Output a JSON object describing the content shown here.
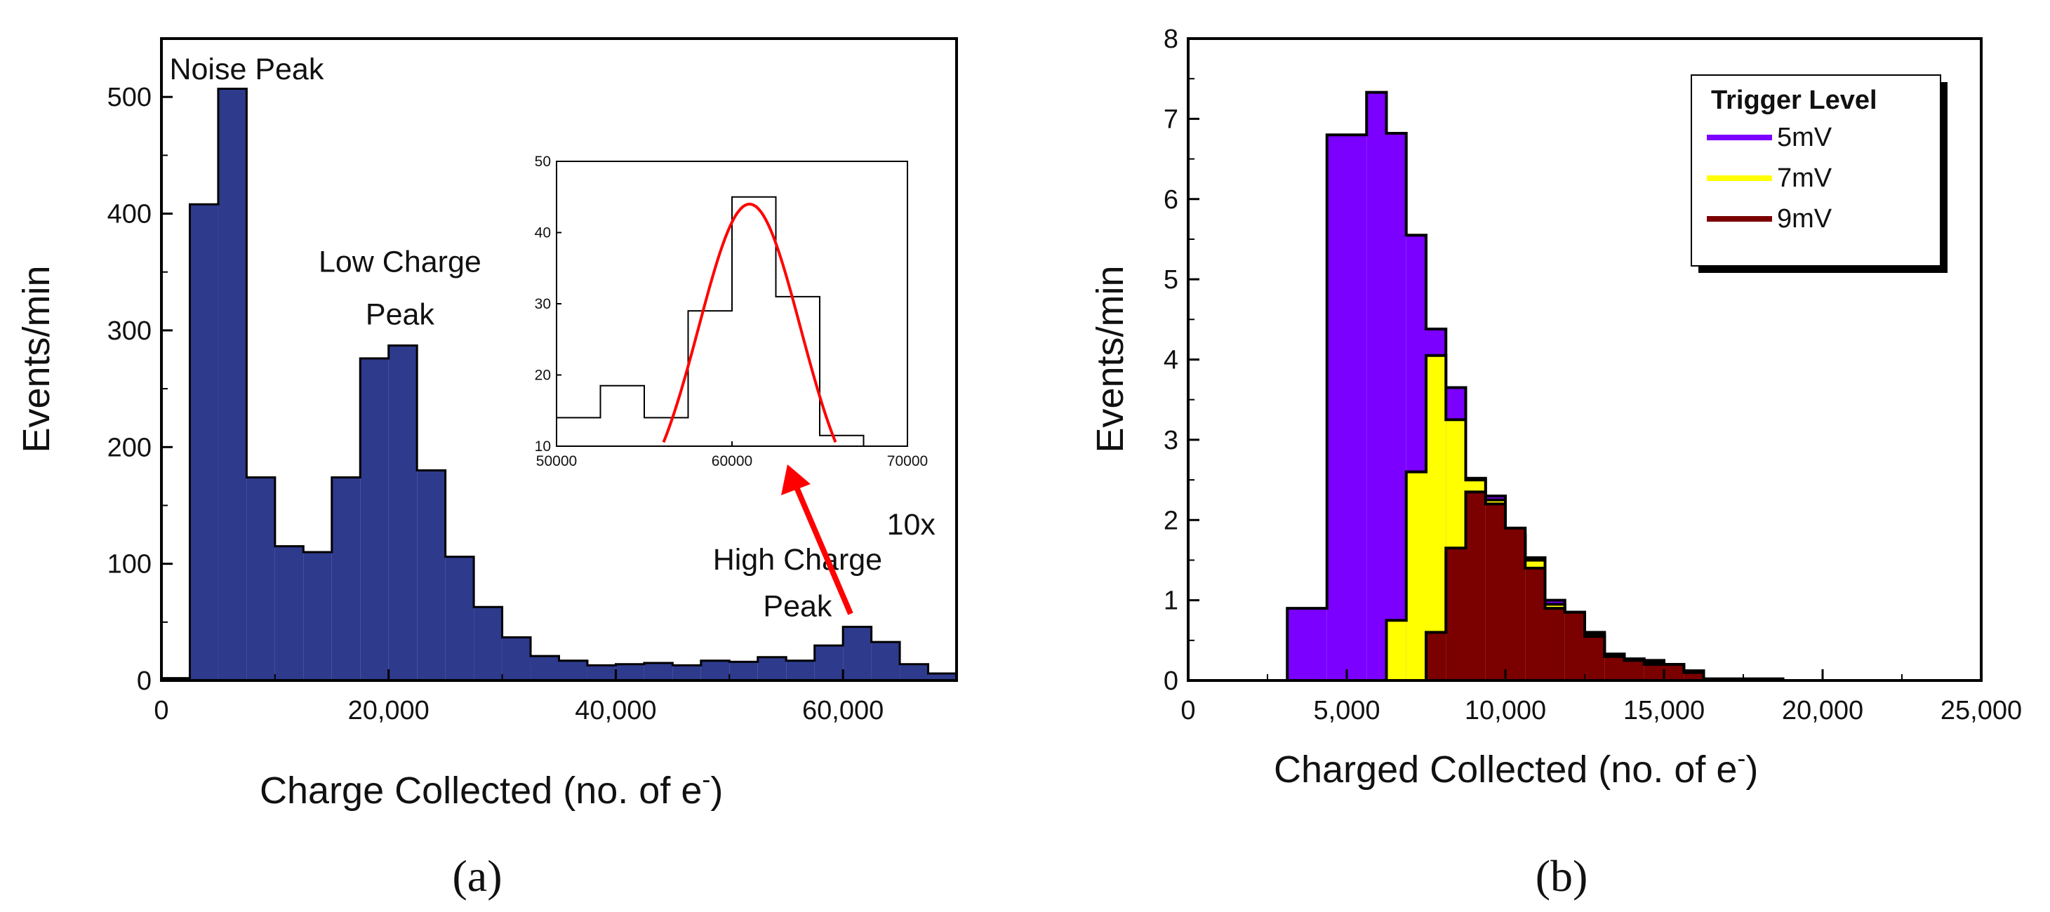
{
  "panel_labels": [
    "(a)",
    "(b)"
  ],
  "chart_data": [
    {
      "type": "bar",
      "title": "",
      "panel_label": "(a)",
      "xlabel": "Charge Collected (no. of e",
      "xlabel_sup": "-",
      "xlabel_end": ")",
      "ylabel": "Events/min",
      "xlim": [
        0,
        70000
      ],
      "ylim": [
        0,
        550
      ],
      "xticks": [
        0,
        20000,
        40000,
        60000
      ],
      "xtick_labels": [
        "0",
        "20,000",
        "40,000",
        "60,000"
      ],
      "yticks": [
        0,
        100,
        200,
        300,
        400,
        500
      ],
      "bin_width": 2500,
      "bin_starts": [
        0,
        2500,
        5000,
        7500,
        10000,
        12500,
        15000,
        17500,
        20000,
        22500,
        25000,
        27500,
        30000,
        32500,
        35000,
        37500,
        40000,
        42500,
        45000,
        47500,
        50000,
        52500,
        55000,
        57500,
        60000,
        62500,
        65000,
        67500
      ],
      "values": [
        2,
        408,
        507,
        174,
        115,
        110,
        174,
        276,
        287,
        180,
        106,
        63,
        37,
        21,
        17,
        13,
        14,
        15,
        13,
        17,
        16,
        20,
        17,
        30,
        46,
        33,
        14,
        6
      ],
      "color": "#2e3a8c",
      "annotations": [
        {
          "text": "Noise Peak",
          "x": 7500,
          "y": 515
        },
        {
          "text": "Low Charge",
          "x": 21000,
          "y": 350
        },
        {
          "text": "Peak",
          "x": 21000,
          "y": 305
        },
        {
          "text": "High Charge",
          "x": 56000,
          "y": 95
        },
        {
          "text": "Peak",
          "x": 56000,
          "y": 55
        },
        {
          "text": "10x",
          "x": 66000,
          "y": 125,
          "color": "#ff0000"
        }
      ],
      "inset": {
        "type": "histogram-with-fit",
        "xlim": [
          50000,
          70000
        ],
        "ylim": [
          10,
          50
        ],
        "xticks": [
          50000,
          60000,
          70000
        ],
        "yticks": [
          10,
          20,
          30,
          40,
          50
        ],
        "bin_edges": [
          50000,
          52500,
          55000,
          57500,
          60000,
          62500,
          65000,
          67500
        ],
        "values": [
          14,
          18.5,
          14,
          29,
          45,
          31,
          11.5
        ],
        "fit": {
          "model": "gaussian",
          "amplitude": 44,
          "mean": 61000,
          "sigma": 2900,
          "color": "#ff0000"
        }
      }
    },
    {
      "type": "bar",
      "title": "",
      "panel_label": "(b)",
      "xlabel": "Charged Collected (no. of e",
      "xlabel_sup": "-",
      "xlabel_end": ")",
      "ylabel": "Events/min",
      "xlim": [
        0,
        25000
      ],
      "ylim": [
        0,
        8
      ],
      "xticks": [
        0,
        5000,
        10000,
        15000,
        20000,
        25000
      ],
      "xtick_labels": [
        "0",
        "5,000",
        "10,000",
        "15,000",
        "20,000",
        "25,000"
      ],
      "yticks": [
        0,
        1,
        2,
        3,
        4,
        5,
        6,
        7,
        8
      ],
      "bin_width": 625,
      "legend": {
        "title": "Trigger Level",
        "placement": "top-right"
      },
      "series": [
        {
          "name": "5mV",
          "color": "#7b00ff",
          "start": 3125,
          "values": [
            0.9,
            0.9,
            6.8,
            6.8,
            7.33,
            6.82,
            5.55,
            4.38,
            3.65,
            2.52,
            2.3,
            1.82,
            1.53,
            1.0,
            0.85,
            0.6,
            0.33,
            0.27,
            0.25,
            0.2,
            0.12,
            0.02,
            0.02,
            0.02,
            0.02,
            0.0
          ]
        },
        {
          "name": "7mV",
          "color": "#ffff00",
          "start": 5625,
          "values": [
            0.0,
            0.75,
            2.6,
            4.05,
            3.25,
            2.5,
            2.25,
            1.8,
            1.5,
            0.95,
            0.85,
            0.58,
            0.3,
            0.25,
            0.22,
            0.2,
            0.12,
            0.02,
            0.02,
            0.02,
            0.02,
            0.0
          ]
        },
        {
          "name": "9mV",
          "color": "#7b0000",
          "start": 7500,
          "values": [
            0.6,
            1.65,
            2.35,
            2.2,
            1.9,
            1.4,
            0.9,
            0.85,
            0.55,
            0.3,
            0.25,
            0.2,
            0.2,
            0.1
          ]
        }
      ]
    }
  ]
}
